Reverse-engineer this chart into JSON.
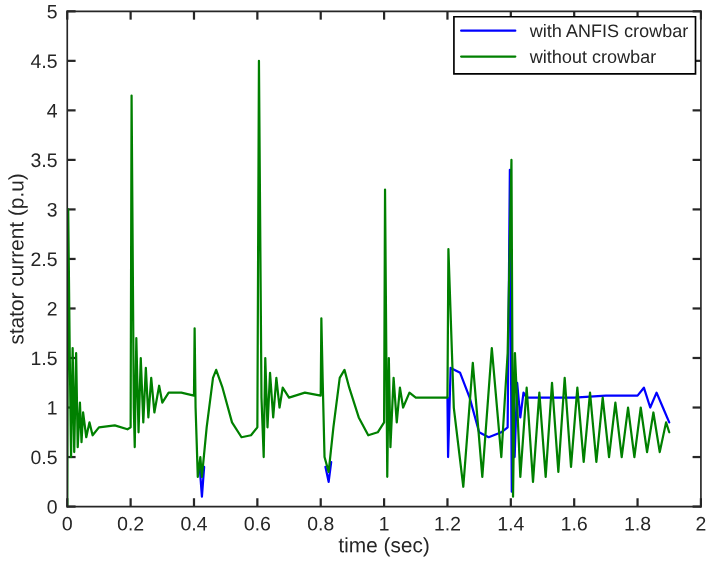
{
  "chart_data": {
    "type": "line",
    "xlabel": "time (sec)",
    "ylabel": "stator current (p.u)",
    "xlim": [
      0,
      2
    ],
    "ylim": [
      0,
      5
    ],
    "xticks": [
      0,
      0.2,
      0.4,
      0.6,
      0.8,
      1,
      1.2,
      1.4,
      1.6,
      1.8,
      2
    ],
    "yticks": [
      0,
      0.5,
      1,
      1.5,
      2,
      2.5,
      3,
      3.5,
      4,
      4.5,
      5
    ],
    "grid": false,
    "legend": "top right",
    "line_style": "solid",
    "marker": "none",
    "series": [
      {
        "name": "with ANFIS crowbar",
        "color": "#0000ff",
        "x": [
          0.418,
          0.425,
          0.432,
          0.5,
          0.815,
          0.825,
          0.833,
          0.9,
          1.2,
          1.202,
          1.21,
          1.24,
          1.27,
          1.3,
          1.33,
          1.37,
          1.39,
          1.397,
          1.403,
          1.407,
          1.412,
          1.42,
          1.43,
          1.44,
          1.45,
          1.47,
          1.5,
          1.6,
          1.7,
          1.8,
          1.82,
          1.84,
          1.86,
          1.88,
          1.9
        ],
        "values": [
          0.4,
          0.1,
          0.4,
          null,
          0.4,
          0.25,
          0.45,
          null,
          1.1,
          0.5,
          1.4,
          1.35,
          1.1,
          0.75,
          0.7,
          0.75,
          0.8,
          3.4,
          0.15,
          1.3,
          0.5,
          1.25,
          0.9,
          1.15,
          1.1,
          1.1,
          1.1,
          1.1,
          1.12,
          1.12,
          1.2,
          1.0,
          1.15,
          1.0,
          0.85
        ]
      },
      {
        "name": "without crowbar",
        "color": "#008000",
        "x": [
          0,
          0.003,
          0.008,
          0.012,
          0.017,
          0.022,
          0.028,
          0.033,
          0.04,
          0.045,
          0.05,
          0.06,
          0.07,
          0.08,
          0.1,
          0.15,
          0.19,
          0.2,
          0.203,
          0.21,
          0.213,
          0.218,
          0.225,
          0.232,
          0.24,
          0.248,
          0.256,
          0.265,
          0.275,
          0.29,
          0.3,
          0.32,
          0.36,
          0.4,
          0.402,
          0.405,
          0.412,
          0.42,
          0.425,
          0.44,
          0.46,
          0.47,
          0.49,
          0.52,
          0.55,
          0.58,
          0.6,
          0.605,
          0.613,
          0.62,
          0.625,
          0.632,
          0.64,
          0.65,
          0.66,
          0.67,
          0.68,
          0.7,
          0.75,
          0.8,
          0.802,
          0.806,
          0.812,
          0.825,
          0.84,
          0.86,
          0.875,
          0.89,
          0.92,
          0.95,
          0.98,
          1.0,
          1.003,
          1.01,
          1.015,
          1.02,
          1.03,
          1.04,
          1.05,
          1.06,
          1.08,
          1.1,
          1.2,
          1.203,
          1.22,
          1.25,
          1.28,
          1.31,
          1.34,
          1.37,
          1.39,
          1.402,
          1.407,
          1.413,
          1.43,
          1.45,
          1.47,
          1.49,
          1.51,
          1.53,
          1.55,
          1.57,
          1.59,
          1.61,
          1.63,
          1.65,
          1.67,
          1.69,
          1.71,
          1.73,
          1.75,
          1.77,
          1.79,
          1.81,
          1.83,
          1.85,
          1.87,
          1.89,
          1.9
        ],
        "values": [
          0,
          3.0,
          1.5,
          0.5,
          1.6,
          0.55,
          1.55,
          0.6,
          1.05,
          0.65,
          0.95,
          0.7,
          0.85,
          0.72,
          0.8,
          0.82,
          0.78,
          0.8,
          4.15,
          1.0,
          0.6,
          1.7,
          0.75,
          1.5,
          0.85,
          1.4,
          0.9,
          1.3,
          0.95,
          1.22,
          1.05,
          1.15,
          1.15,
          1.12,
          1.8,
          1.0,
          0.3,
          0.5,
          0.3,
          0.8,
          1.3,
          1.38,
          1.2,
          0.85,
          0.7,
          0.72,
          0.8,
          4.5,
          1.1,
          0.5,
          1.5,
          0.8,
          1.35,
          0.9,
          1.3,
          1.0,
          1.2,
          1.1,
          1.15,
          1.12,
          1.9,
          1.3,
          0.5,
          0.35,
          0.8,
          1.3,
          1.38,
          1.2,
          0.9,
          0.72,
          0.75,
          0.85,
          3.2,
          0.3,
          1.5,
          0.6,
          1.3,
          0.85,
          1.2,
          1.0,
          1.15,
          1.1,
          1.1,
          2.6,
          1.0,
          0.2,
          1.45,
          0.3,
          1.6,
          0.5,
          1.55,
          3.5,
          0.1,
          1.55,
          0.3,
          1.2,
          0.25,
          1.15,
          0.3,
          1.25,
          0.35,
          1.3,
          0.4,
          1.2,
          0.45,
          1.15,
          0.45,
          1.1,
          0.5,
          1.05,
          0.5,
          1.0,
          0.5,
          1.0,
          0.55,
          0.95,
          0.55,
          0.85,
          0.75
        ]
      }
    ]
  }
}
